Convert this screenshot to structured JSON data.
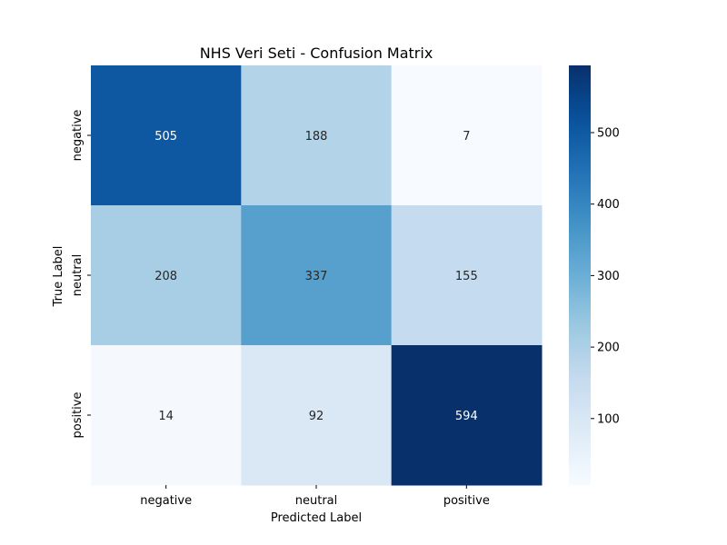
{
  "chart_data": {
    "type": "heatmap",
    "title": "NHS Veri Seti - Confusion Matrix",
    "xlabel": "Predicted Label",
    "ylabel": "True Label",
    "x_categories": [
      "negative",
      "neutral",
      "positive"
    ],
    "y_categories": [
      "negative",
      "neutral",
      "positive"
    ],
    "values": [
      [
        505,
        188,
        7
      ],
      [
        208,
        337,
        155
      ],
      [
        14,
        92,
        594
      ]
    ],
    "colormap": "Blues",
    "colorbar": {
      "range": [
        7,
        594
      ],
      "ticks": [
        100,
        200,
        300,
        400,
        500
      ],
      "tick_labels": [
        "100",
        "200",
        "300",
        "400",
        "500"
      ]
    },
    "grid": false,
    "legend": "colorbar-right"
  }
}
